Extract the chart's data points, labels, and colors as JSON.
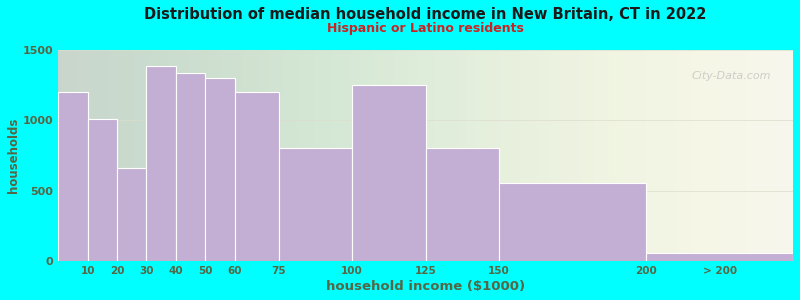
{
  "title": "Distribution of median household income in New Britain, CT in 2022",
  "subtitle": "Hispanic or Latino residents",
  "xlabel": "household income ($1000)",
  "ylabel": "households",
  "background_color": "#00FFFF",
  "plot_bg_left": "#e8f0d8",
  "plot_bg_right": "#f5f5ef",
  "bar_color": "#c4afd4",
  "bar_edge_color": "#ffffff",
  "title_color": "#1a1a1a",
  "subtitle_color": "#cc2222",
  "axis_label_color": "#556644",
  "tick_label_color": "#556644",
  "categories": [
    "10",
    "20",
    "30",
    "40",
    "50",
    "60",
    "75",
    "100",
    "125",
    "150",
    "200",
    "> 200"
  ],
  "values": [
    1200,
    1010,
    660,
    1380,
    1330,
    1300,
    1200,
    800,
    1250,
    800,
    550,
    60
  ],
  "left_edges": [
    0,
    10,
    20,
    30,
    40,
    50,
    60,
    75,
    100,
    125,
    150,
    200
  ],
  "widths": [
    10,
    10,
    10,
    10,
    10,
    10,
    15,
    25,
    25,
    25,
    50,
    50
  ],
  "ylim": [
    0,
    1500
  ],
  "yticks": [
    0,
    500,
    1000,
    1500
  ],
  "xlim": [
    0,
    250
  ],
  "watermark": "City-Data.com"
}
